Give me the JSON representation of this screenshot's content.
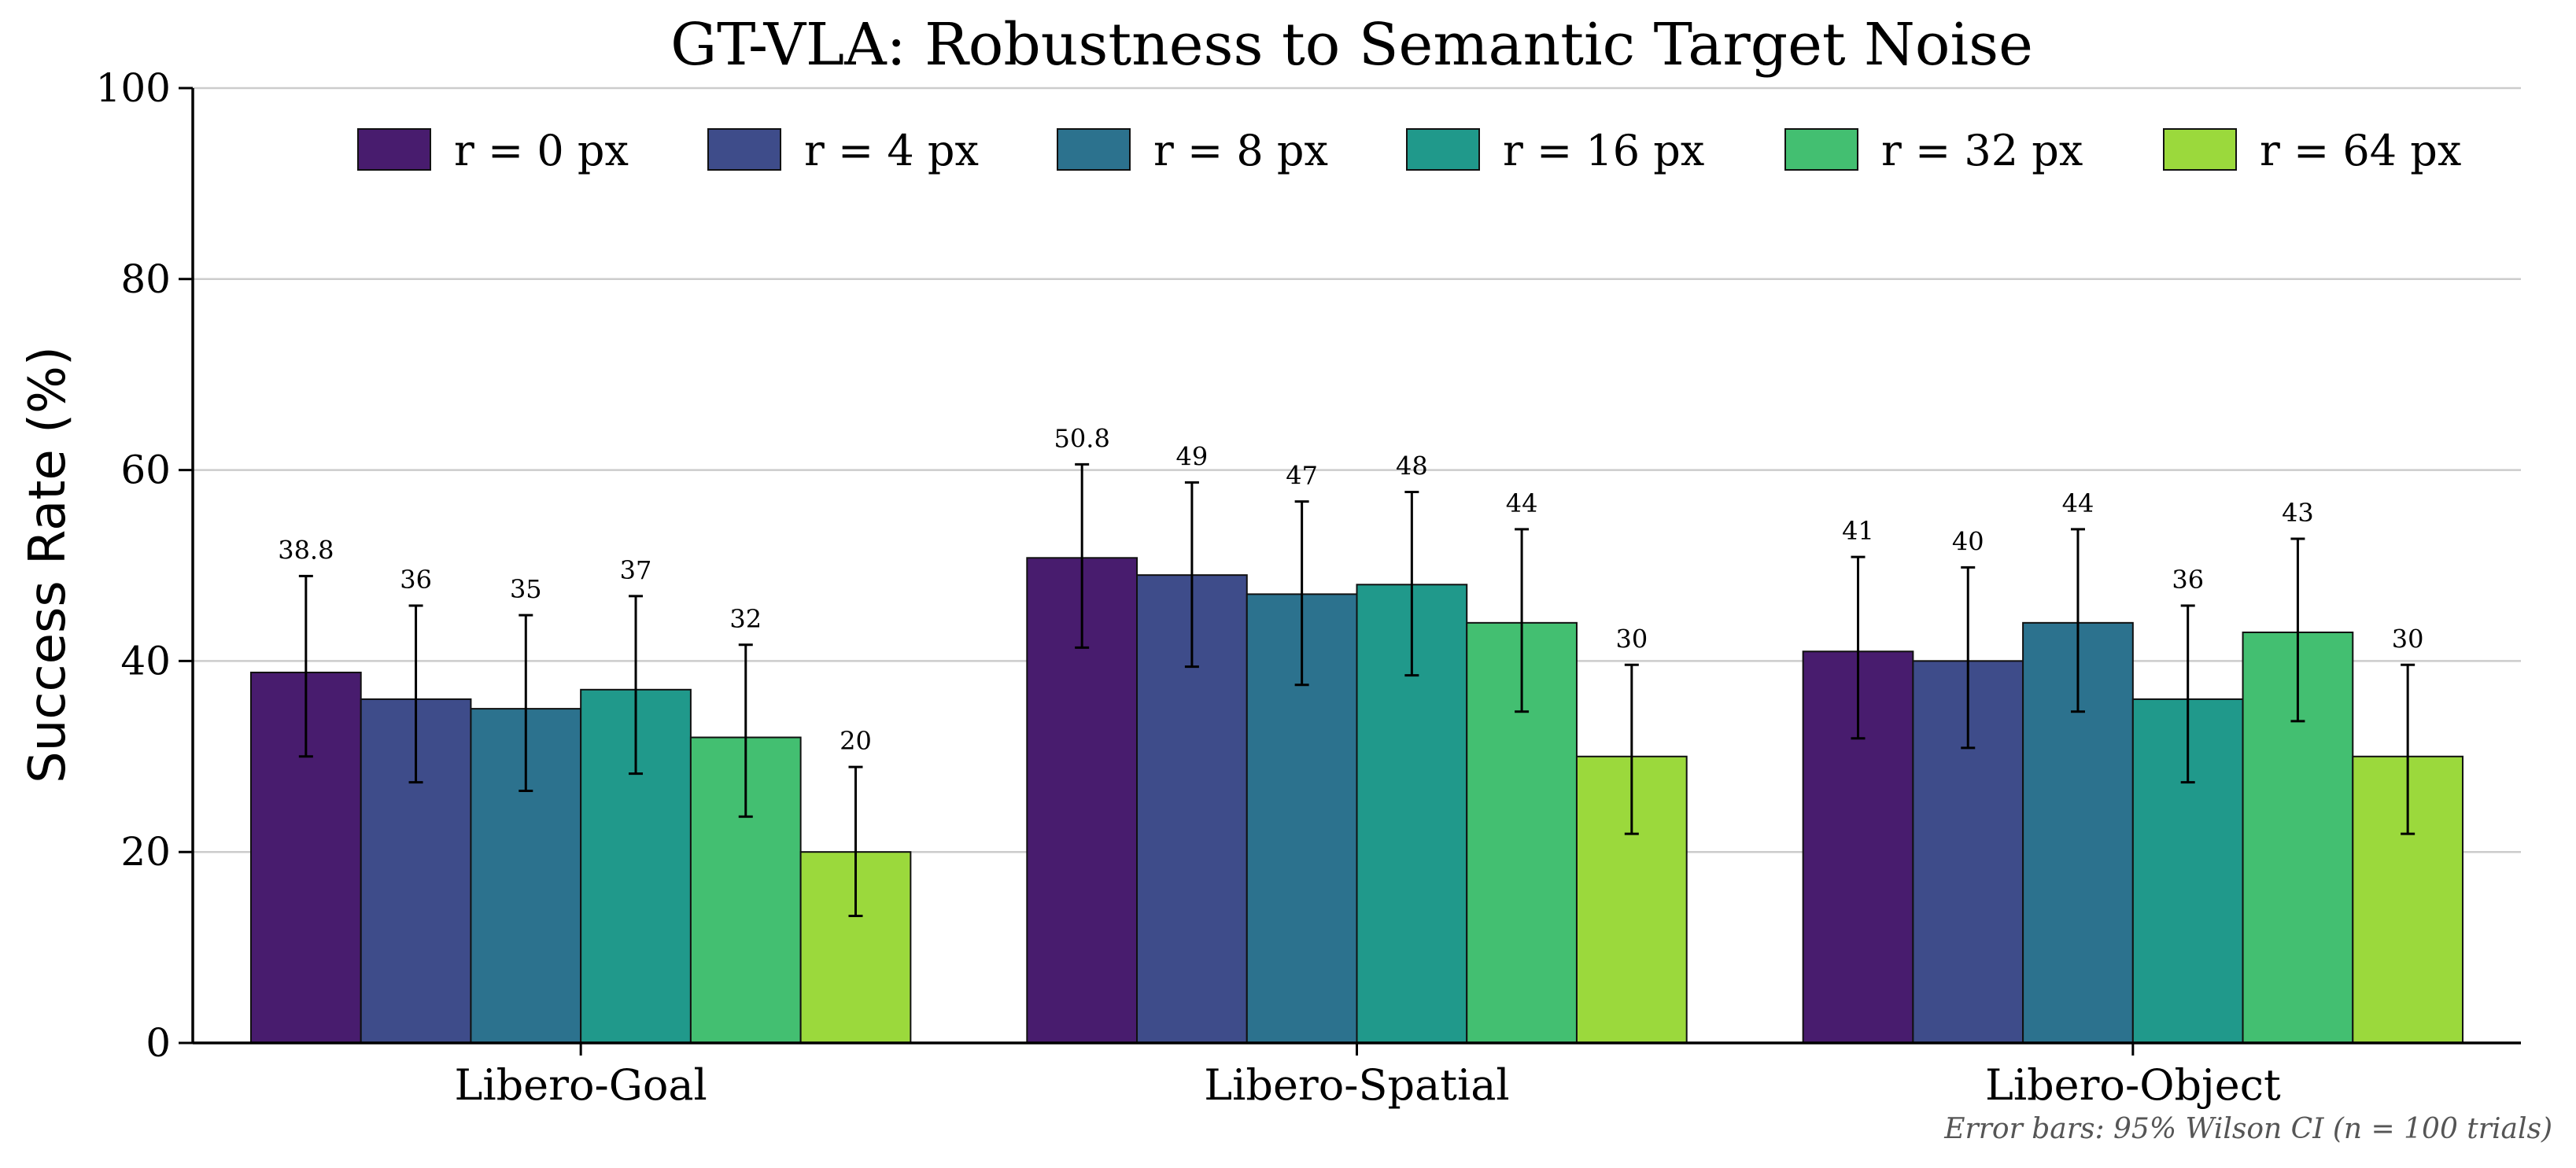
{
  "chart_data": {
    "type": "bar",
    "title": "GT-VLA: Robustness to Semantic Target Noise",
    "xlabel": "",
    "ylabel": "Success Rate (%)",
    "ylim": [
      0,
      100
    ],
    "yticks": [
      "0",
      "20",
      "40",
      "60",
      "80",
      "100"
    ],
    "grid": "horizontal",
    "legend_position": "top",
    "categories": [
      "Libero-Goal",
      "Libero-Spatial",
      "Libero-Object"
    ],
    "series": [
      {
        "name": "r = 0 px",
        "color": "#481C6E",
        "values": [
          38.8,
          50.8,
          41
        ],
        "labels": [
          "38.8",
          "50.8",
          "41"
        ],
        "ci_low": [
          30.0,
          41.4,
          31.9
        ],
        "ci_high": [
          48.9,
          60.6,
          50.9
        ]
      },
      {
        "name": "r = 4 px",
        "color": "#3E4C8A",
        "values": [
          36,
          49,
          40
        ],
        "labels": [
          "36",
          "49",
          "40"
        ],
        "ci_low": [
          27.3,
          39.4,
          30.9
        ],
        "ci_high": [
          45.8,
          58.7,
          49.8
        ]
      },
      {
        "name": "r = 8 px",
        "color": "#2C728E",
        "values": [
          35,
          47,
          44
        ],
        "labels": [
          "35",
          "47",
          "44"
        ],
        "ci_low": [
          26.4,
          37.5,
          34.7
        ],
        "ci_high": [
          44.8,
          56.7,
          53.8
        ]
      },
      {
        "name": "r = 16 px",
        "color": "#20998B",
        "values": [
          37,
          48,
          36
        ],
        "labels": [
          "37",
          "48",
          "36"
        ],
        "ci_low": [
          28.2,
          38.5,
          27.3
        ],
        "ci_high": [
          46.8,
          57.7,
          45.8
        ]
      },
      {
        "name": "r = 32 px",
        "color": "#43BF71",
        "values": [
          32,
          44,
          43
        ],
        "labels": [
          "32",
          "44",
          "43"
        ],
        "ci_low": [
          23.7,
          34.7,
          33.7
        ],
        "ci_high": [
          41.7,
          53.8,
          52.8
        ]
      },
      {
        "name": "r = 64 px",
        "color": "#9BD93C",
        "values": [
          20,
          30,
          30
        ],
        "labels": [
          "20",
          "30",
          "30"
        ],
        "ci_low": [
          13.3,
          21.9,
          21.9
        ],
        "ci_high": [
          28.9,
          39.6,
          39.6
        ]
      }
    ],
    "footnote": "Error bars: 95% Wilson CI  (n = 100 trials)"
  }
}
